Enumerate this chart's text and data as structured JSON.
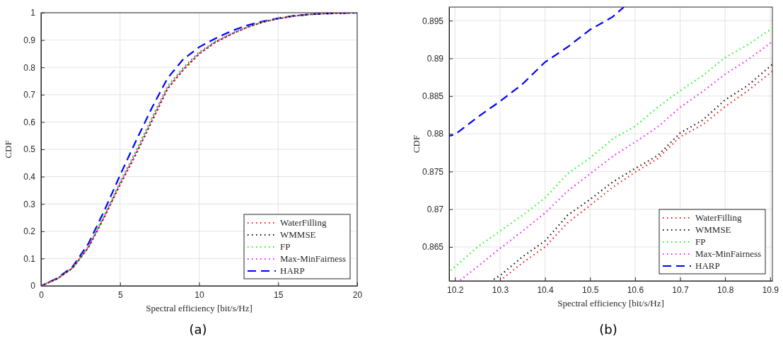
{
  "chart_data": [
    {
      "type": "line",
      "xlabel": "Spectral efficiency [bit/s/Hz]",
      "ylabel": "CDF",
      "annotations": [
        "(a)"
      ],
      "x": [
        0,
        1,
        2,
        3,
        4,
        5,
        6,
        7,
        8,
        9,
        10,
        11,
        12,
        13,
        14,
        15,
        16,
        17,
        18,
        20
      ],
      "xlim": [
        0,
        20
      ],
      "ylim": [
        0,
        1
      ],
      "xticks": [
        0,
        5,
        10,
        15,
        20
      ],
      "yticks": [
        0,
        0.1,
        0.2,
        0.3,
        0.4,
        0.5,
        0.6,
        0.7,
        0.8,
        0.9,
        1
      ],
      "grid": true,
      "legend": "bottom right",
      "series": [
        {
          "name": "WaterFilling",
          "color": "#ff0000",
          "line_style": "dotted",
          "values": [
            0,
            0.025,
            0.065,
            0.14,
            0.25,
            0.37,
            0.48,
            0.6,
            0.72,
            0.79,
            0.848,
            0.89,
            0.92,
            0.945,
            0.965,
            0.978,
            0.988,
            0.994,
            0.997,
            1
          ]
        },
        {
          "name": "WMMSE",
          "color": "#000000",
          "line_style": "dotted",
          "values": [
            0,
            0.025,
            0.065,
            0.141,
            0.252,
            0.372,
            0.483,
            0.603,
            0.722,
            0.792,
            0.85,
            0.891,
            0.921,
            0.946,
            0.965,
            0.978,
            0.988,
            0.994,
            0.997,
            1
          ]
        },
        {
          "name": "FP",
          "color": "#00ff00",
          "line_style": "dotted",
          "values": [
            0,
            0.025,
            0.066,
            0.145,
            0.258,
            0.382,
            0.495,
            0.615,
            0.732,
            0.8,
            0.856,
            0.895,
            0.923,
            0.947,
            0.966,
            0.979,
            0.988,
            0.994,
            0.997,
            1
          ]
        },
        {
          "name": "Max-MinFairness",
          "color": "#ff00ff",
          "line_style": "dotted",
          "values": [
            0,
            0.025,
            0.066,
            0.143,
            0.255,
            0.377,
            0.49,
            0.61,
            0.728,
            0.797,
            0.854,
            0.893,
            0.922,
            0.946,
            0.966,
            0.978,
            0.988,
            0.994,
            0.997,
            1
          ]
        },
        {
          "name": "HARP",
          "color": "#0000ff",
          "line_style": "dashed",
          "values": [
            0,
            0.027,
            0.07,
            0.155,
            0.275,
            0.405,
            0.53,
            0.65,
            0.76,
            0.83,
            0.874,
            0.905,
            0.932,
            0.953,
            0.968,
            0.98,
            0.989,
            0.994,
            0.997,
            1
          ]
        }
      ]
    },
    {
      "type": "line",
      "xlabel": "Spectral efficiency [bit/s/Hz]",
      "ylabel": "CDF",
      "annotations": [
        "(b)"
      ],
      "xlim": [
        10.187,
        10.905
      ],
      "ylim": [
        0.8605,
        0.8968
      ],
      "xticks": [
        10.2,
        10.3,
        10.4,
        10.5,
        10.6,
        10.7,
        10.8,
        10.9
      ],
      "yticks": [
        0.865,
        0.87,
        0.875,
        0.88,
        0.885,
        0.89,
        0.895
      ],
      "grid": true,
      "legend": "bottom right",
      "series": [
        {
          "name": "WaterFilling",
          "color": "#ff0000",
          "line_style": "dotted",
          "x": [
            10.3,
            10.35,
            10.4,
            10.45,
            10.5,
            10.55,
            10.6,
            10.65,
            10.7,
            10.75,
            10.8,
            10.85,
            10.905
          ],
          "values": [
            0.8605,
            0.8629,
            0.865,
            0.8682,
            0.8705,
            0.8729,
            0.8749,
            0.8767,
            0.8796,
            0.8812,
            0.8836,
            0.8857,
            0.8883
          ]
        },
        {
          "name": "WMMSE",
          "color": "#000000",
          "line_style": "dotted",
          "x": [
            10.28,
            10.3,
            10.35,
            10.4,
            10.45,
            10.5,
            10.55,
            10.6,
            10.65,
            10.7,
            10.75,
            10.8,
            10.85,
            10.905
          ],
          "values": [
            0.8605,
            0.8612,
            0.8637,
            0.8658,
            0.8692,
            0.8713,
            0.8736,
            0.8754,
            0.8771,
            0.8801,
            0.8818,
            0.8845,
            0.8864,
            0.8892
          ]
        },
        {
          "name": "FP",
          "color": "#00ff00",
          "line_style": "dotted",
          "x": [
            10.187,
            10.25,
            10.3,
            10.35,
            10.4,
            10.45,
            10.5,
            10.55,
            10.6,
            10.65,
            10.7,
            10.75,
            10.8,
            10.85,
            10.905
          ],
          "values": [
            0.8617,
            0.865,
            0.8671,
            0.8692,
            0.8715,
            0.8747,
            0.8768,
            0.8793,
            0.881,
            0.8835,
            0.8857,
            0.8877,
            0.8901,
            0.8918,
            0.894
          ]
        },
        {
          "name": "Max-MinFairness",
          "color": "#ff00ff",
          "line_style": "dotted",
          "x": [
            10.21,
            10.25,
            10.3,
            10.35,
            10.4,
            10.45,
            10.5,
            10.55,
            10.6,
            10.65,
            10.7,
            10.75,
            10.8,
            10.85,
            10.905
          ],
          "values": [
            0.8605,
            0.8624,
            0.8648,
            0.8671,
            0.8695,
            0.8724,
            0.8747,
            0.877,
            0.8789,
            0.8809,
            0.8835,
            0.8856,
            0.8879,
            0.8898,
            0.8922
          ]
        },
        {
          "name": "HARP",
          "color": "#0000ff",
          "line_style": "dashed",
          "x": [
            10.187,
            10.2,
            10.25,
            10.3,
            10.35,
            10.4,
            10.45,
            10.5,
            10.55,
            10.575
          ],
          "values": [
            0.8797,
            0.8799,
            0.8822,
            0.8843,
            0.8866,
            0.8895,
            0.8915,
            0.8938,
            0.8955,
            0.8968
          ]
        }
      ]
    }
  ]
}
